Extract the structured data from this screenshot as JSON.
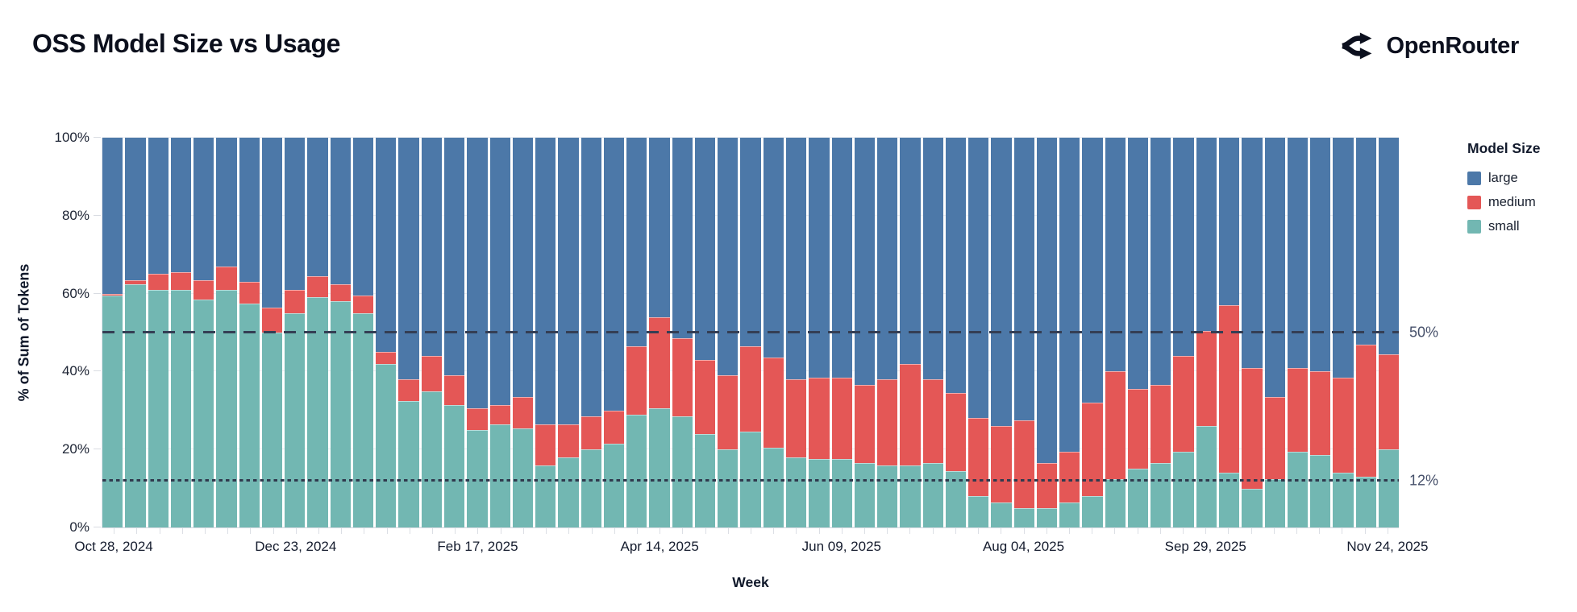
{
  "header": {
    "title": "OSS Model Size vs Usage",
    "brand": "OpenRouter"
  },
  "chart_data": {
    "type": "bar",
    "variant": "stacked-normalized",
    "title": "OSS Model Size vs Usage",
    "xlabel": "Week",
    "ylabel": "% of Sum of Tokens",
    "ylim": [
      0,
      100
    ],
    "grid": true,
    "y_ticks": [
      {
        "value": 0,
        "label": "0%"
      },
      {
        "value": 20,
        "label": "20%"
      },
      {
        "value": 40,
        "label": "40%"
      },
      {
        "value": 60,
        "label": "60%"
      },
      {
        "value": 80,
        "label": "80%"
      },
      {
        "value": 100,
        "label": "100%"
      }
    ],
    "x_ticks": [
      {
        "index": 0,
        "label": "Oct 28, 2024"
      },
      {
        "index": 8,
        "label": "Dec 23, 2024"
      },
      {
        "index": 16,
        "label": "Feb 17, 2025"
      },
      {
        "index": 24,
        "label": "Apr 14, 2025"
      },
      {
        "index": 32,
        "label": "Jun 09, 2025"
      },
      {
        "index": 40,
        "label": "Aug 04, 2025"
      },
      {
        "index": 48,
        "label": "Sep 29, 2025"
      },
      {
        "index": 56,
        "label": "Nov 24, 2025"
      }
    ],
    "legend": {
      "title": "Model Size",
      "position": "right",
      "entries": [
        {
          "label": "large",
          "color": "#4c78a8"
        },
        {
          "label": "medium",
          "color": "#e45756"
        },
        {
          "label": "small",
          "color": "#72b7b2"
        }
      ]
    },
    "reference_lines": [
      {
        "value": 50,
        "label": "50%",
        "style": "dashed"
      },
      {
        "value": 12,
        "label": "12%",
        "style": "dotted"
      }
    ],
    "weeks": [
      "Oct 28, 2024",
      "Nov 04, 2024",
      "Nov 11, 2024",
      "Nov 18, 2024",
      "Nov 25, 2024",
      "Dec 02, 2024",
      "Dec 09, 2024",
      "Dec 16, 2024",
      "Dec 23, 2024",
      "Dec 30, 2024",
      "Jan 06, 2025",
      "Jan 13, 2025",
      "Jan 20, 2025",
      "Jan 27, 2025",
      "Feb 03, 2025",
      "Feb 10, 2025",
      "Feb 17, 2025",
      "Feb 24, 2025",
      "Mar 03, 2025",
      "Mar 10, 2025",
      "Mar 17, 2025",
      "Mar 24, 2025",
      "Mar 31, 2025",
      "Apr 07, 2025",
      "Apr 14, 2025",
      "Apr 21, 2025",
      "Apr 28, 2025",
      "May 05, 2025",
      "May 12, 2025",
      "May 19, 2025",
      "May 26, 2025",
      "Jun 02, 2025",
      "Jun 09, 2025",
      "Jun 16, 2025",
      "Jun 23, 2025",
      "Jun 30, 2025",
      "Jul 07, 2025",
      "Jul 14, 2025",
      "Jul 21, 2025",
      "Jul 28, 2025",
      "Aug 04, 2025",
      "Aug 11, 2025",
      "Aug 18, 2025",
      "Aug 25, 2025",
      "Sep 01, 2025",
      "Sep 08, 2025",
      "Sep 15, 2025",
      "Sep 22, 2025",
      "Sep 29, 2025",
      "Oct 06, 2025",
      "Oct 13, 2025",
      "Oct 20, 2025",
      "Oct 27, 2025",
      "Nov 03, 2025",
      "Nov 10, 2025",
      "Nov 17, 2025",
      "Nov 24, 2025"
    ],
    "series": [
      {
        "name": "small",
        "color": "#72b7b2",
        "values": [
          59.5,
          62.5,
          61,
          61,
          58.5,
          61,
          57.5,
          50,
          55,
          59,
          58,
          55,
          42,
          32.5,
          35,
          31.5,
          25,
          26.5,
          25.5,
          16,
          18,
          20,
          21.5,
          29,
          30.5,
          28.5,
          24,
          20,
          24.5,
          20.5,
          18,
          17.5,
          17.5,
          16.5,
          16,
          16,
          16.5,
          14.5,
          8,
          6.5,
          5,
          5,
          6.5,
          8,
          12.5,
          15,
          16.5,
          19.5,
          26,
          14,
          10,
          12.5,
          19.5,
          18.5,
          14,
          13,
          20
        ]
      },
      {
        "name": "medium",
        "color": "#e45756",
        "values": [
          0.5,
          1,
          4,
          4.5,
          5,
          6,
          5.5,
          6.5,
          6,
          5.5,
          4.5,
          4.5,
          3,
          5.5,
          9,
          7.5,
          5.5,
          5,
          8,
          10.5,
          8.5,
          8.5,
          8.5,
          17.5,
          23.5,
          20,
          19,
          19,
          22,
          23,
          20,
          21,
          21,
          20,
          22,
          26,
          21.5,
          20,
          20,
          19.5,
          22.5,
          11.5,
          13,
          24,
          27.5,
          20.5,
          20,
          24.5,
          24.5,
          43,
          31,
          21,
          21.5,
          21.5,
          24.5,
          34,
          24.5
        ]
      },
      {
        "name": "large",
        "color": "#4c78a8",
        "values": [
          40,
          36.5,
          35,
          34.5,
          36.5,
          33,
          37,
          43.5,
          39,
          35.5,
          37.5,
          40.5,
          55,
          62,
          56,
          61,
          69.5,
          68.5,
          66.5,
          73.5,
          73.5,
          71.5,
          70,
          53.5,
          46,
          51.5,
          57,
          61,
          53.5,
          56.5,
          62,
          61.5,
          61.5,
          63.5,
          62,
          58,
          62,
          65.5,
          72,
          74,
          72.5,
          83.5,
          80.5,
          68,
          60,
          64.5,
          63.5,
          56,
          49.5,
          43,
          59,
          66.5,
          59,
          60,
          61.5,
          53,
          55.5
        ]
      }
    ]
  }
}
